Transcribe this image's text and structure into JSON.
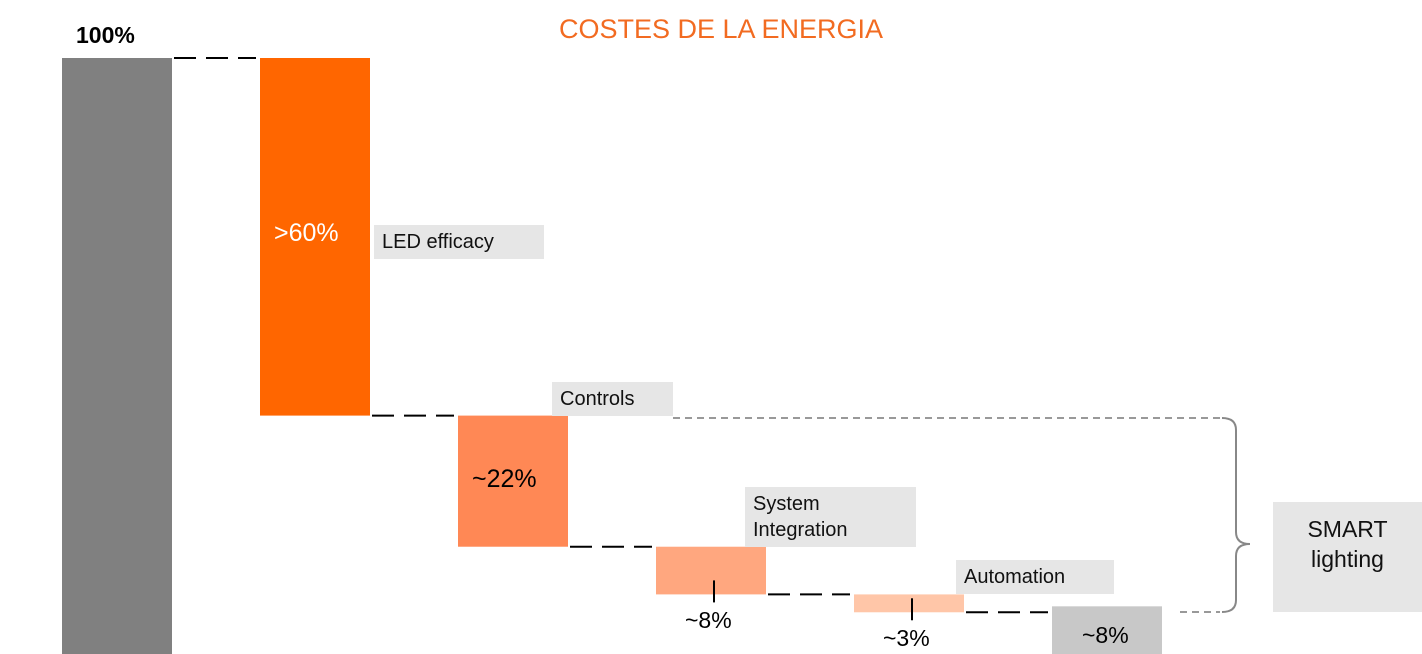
{
  "chart_data": {
    "type": "waterfall",
    "title": "COSTES DE LA ENERGIA",
    "categories": [
      null,
      "LED efficacy",
      "Controls",
      "System Integration",
      "Automation",
      null
    ],
    "values": [
      100,
      60,
      22,
      8,
      3,
      8
    ],
    "value_labels": [
      "100%",
      ">60%",
      "~22%",
      "~8%",
      "~3%",
      "~8%"
    ],
    "colors": [
      "#808080",
      "#ff6600",
      "#ff8855",
      "#ffa77f",
      "#ffc6a8",
      "#c8c8c8"
    ],
    "bracket_label": "SMART lighting",
    "ylim": [
      0,
      100
    ]
  }
}
